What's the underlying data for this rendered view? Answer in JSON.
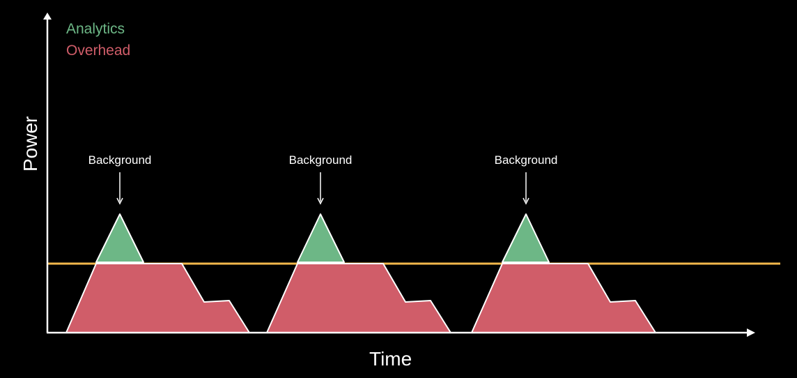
{
  "legend": {
    "analytics_label": "Analytics",
    "overhead_label": "Overhead"
  },
  "axes": {
    "x_label": "Time",
    "y_label": "Power"
  },
  "annotations": [
    "Background",
    "Background",
    "Background"
  ],
  "colors": {
    "background": "#000000",
    "analytics": "#6db786",
    "overhead": "#d05d69",
    "threshold": "#f2b84b",
    "axis": "#ffffff"
  }
}
